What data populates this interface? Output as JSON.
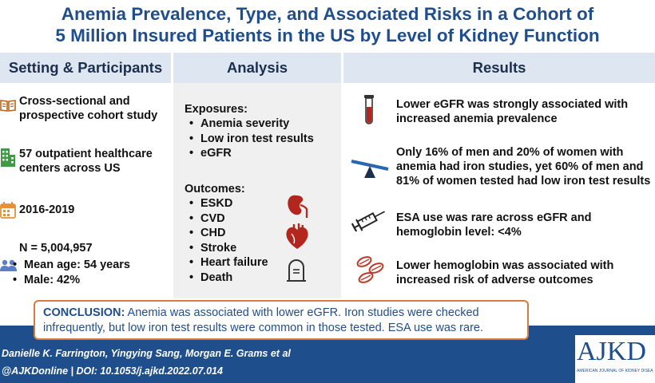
{
  "title": {
    "line1": "Anemia Prevalence, Type, and Associated Risks in a Cohort of",
    "line2": "5 Million Insured Patients in the US by Level of Kidney Function"
  },
  "columns": {
    "setting": "Setting & Participants",
    "analysis": "Analysis",
    "results": "Results"
  },
  "setting": {
    "design_line1": "Cross-sectional and",
    "design_line2": "prospective cohort study",
    "centers_line1": "57 outpatient healthcare",
    "centers_line2": "centers across US",
    "years": "2016-2019",
    "n": "N = 5,004,957",
    "mean_age": "Mean age: 54 years",
    "male": "Male: 42%"
  },
  "analysis": {
    "exposures_heading": "Exposures:",
    "exposures": [
      "Anemia severity",
      "Low iron test results",
      "eGFR"
    ],
    "outcomes_heading": "Outcomes:",
    "outcomes": [
      "ESKD",
      "CVD",
      "CHD",
      "Stroke",
      "Heart failure",
      "Death"
    ]
  },
  "results": {
    "r1_line1": "Lower eGFR was strongly associated with",
    "r1_line2": "increased anemia prevalence",
    "r2_line1": "Only 16% of men and 20% of women with",
    "r2_line2": "anemia had iron studies, yet 60% of men and",
    "r2_line3": "81% of women tested had low iron test results",
    "r3_line1": "ESA use was rare across eGFR and",
    "r3_line2": "hemoglobin level: <4%",
    "r4_line1": "Lower hemoglobin was associated with",
    "r4_line2": "increased risk of adverse outcomes"
  },
  "conclusion": {
    "label": "CONCLUSION:",
    "line1": " Anemia was associated with lower eGFR. Iron studies were checked",
    "line2": "infrequently, but low iron test results were common in those tested. ESA use was rare."
  },
  "footer": {
    "authors": "Danielle K. Farrington, Yingying Sang, Morgan E. Grams et al",
    "doi": "@AJKDonline | DOI: 10.1053/j.ajkd.2022.07.014",
    "logo": "AJKD",
    "logo_sub": "AMERICAN JOURNAL OF KIDNEY DISEASES"
  },
  "colors": {
    "title": "#1f4e8c",
    "header_band": "#dde6f1",
    "analysis_bg": "#f0f0f0",
    "footer": "#1f4e8c",
    "conclusion_border": "#d97b3d",
    "accent_green": "#3f9a43",
    "accent_orange": "#e4913a",
    "accent_red": "#b3261e",
    "accent_blue": "#2a66b1"
  },
  "icons": [
    "book-icon",
    "building-icon",
    "calendar-icon",
    "people-icon",
    "kidney-icon",
    "heart-icon",
    "tombstone-icon",
    "test-tube-icon",
    "seesaw-icon",
    "syringe-icon",
    "pills-icon"
  ]
}
